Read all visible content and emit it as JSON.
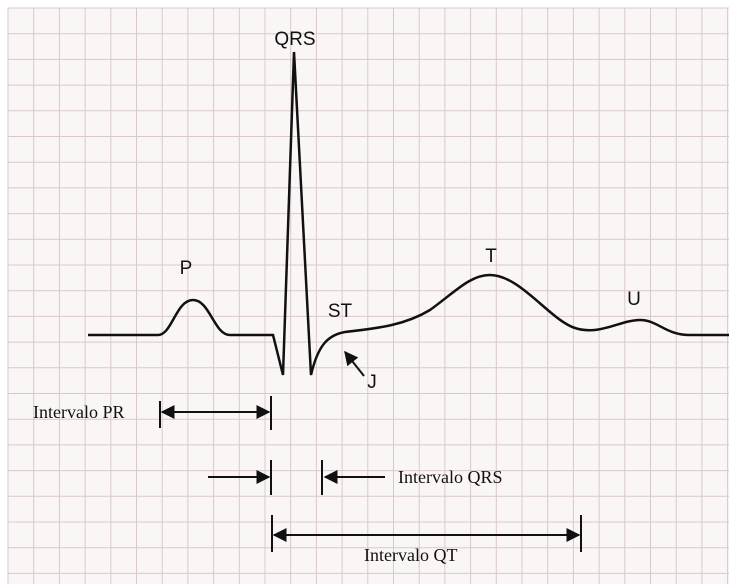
{
  "waves": {
    "p": "P",
    "qrs": "QRS",
    "st": "ST",
    "t": "T",
    "u": "U",
    "j": "J"
  },
  "intervals": {
    "pr": "Intervalo PR",
    "qrs": "Intervalo QRS",
    "qt": "Intervalo QT"
  }
}
